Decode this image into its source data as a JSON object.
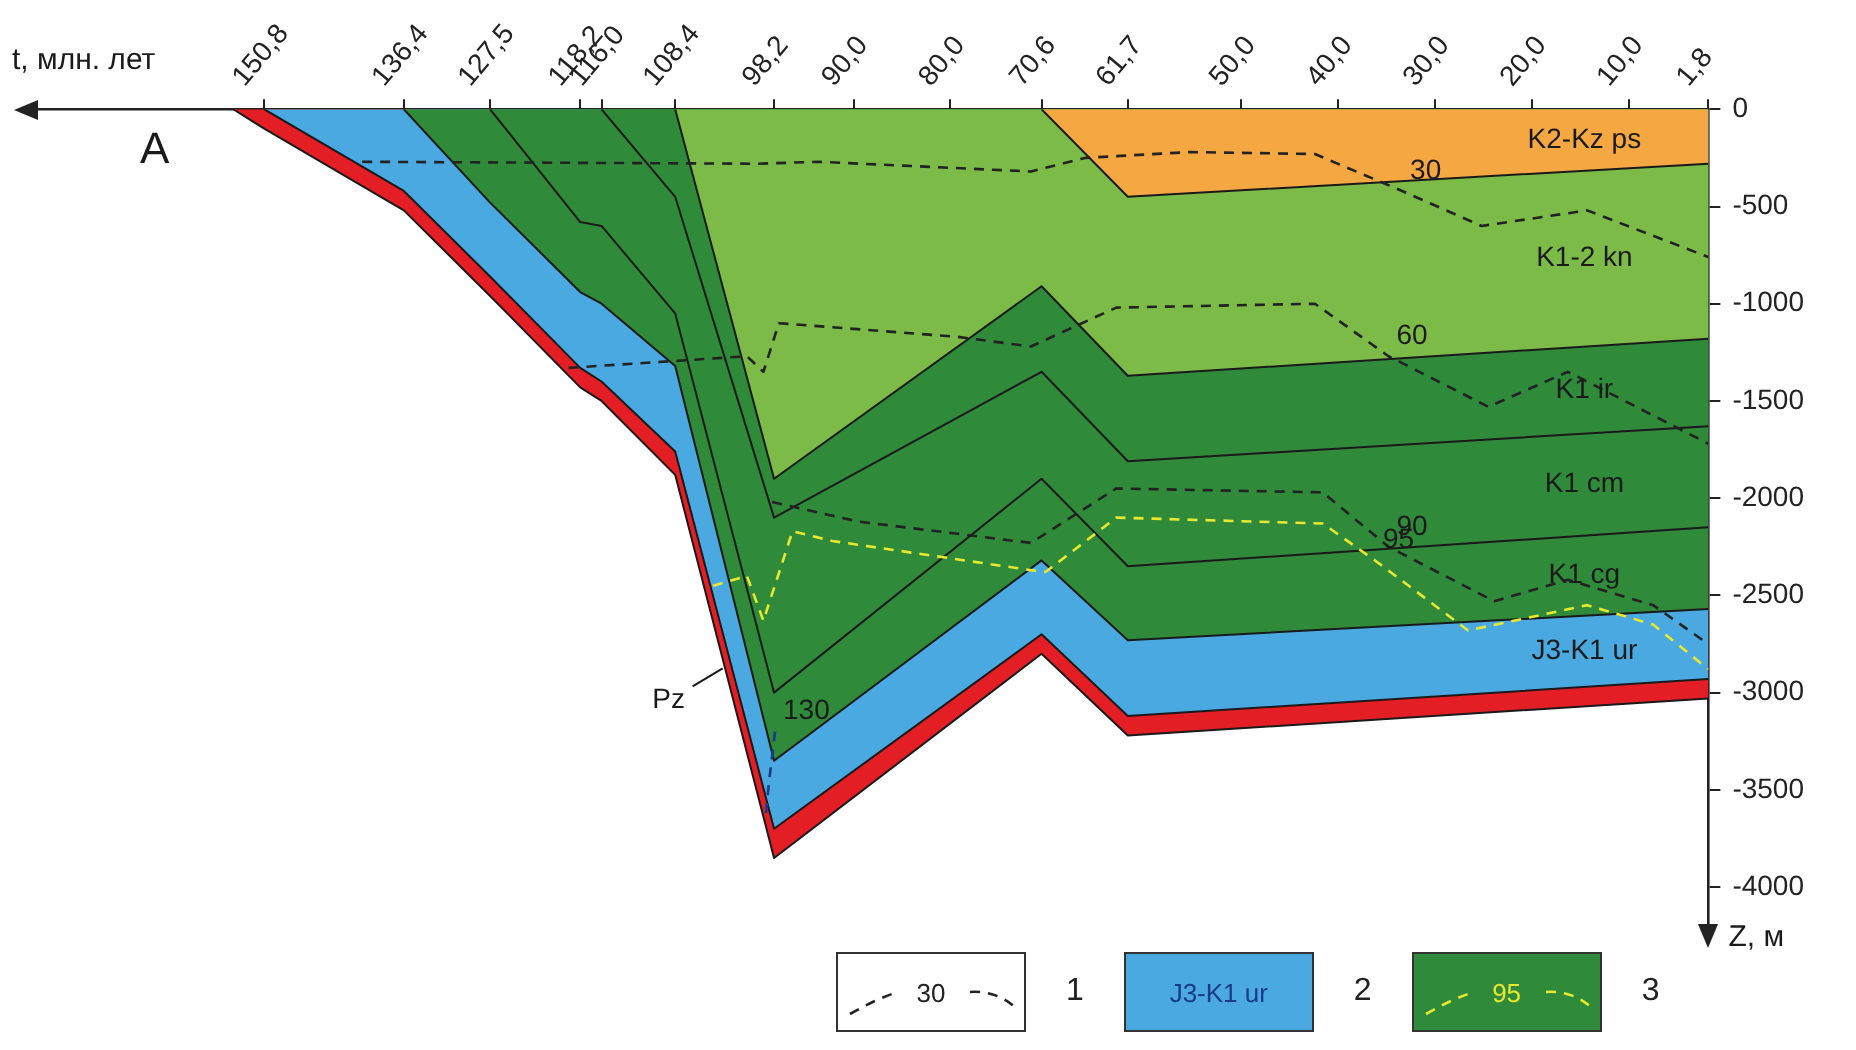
{
  "chart_data": {
    "type": "area",
    "stacked": true,
    "xlabel": "t, млн. лет",
    "ylabel": "Z, м",
    "xlim": [
      176,
      1.8
    ],
    "ylim": [
      -4200,
      0
    ],
    "xticks": [
      {
        "value": 150.8,
        "label": "150,8"
      },
      {
        "value": 136.4,
        "label": "136,4"
      },
      {
        "value": 127.5,
        "label": "127,5"
      },
      {
        "value": 118.2,
        "label": "118,2"
      },
      {
        "value": 116.0,
        "label": "116,0"
      },
      {
        "value": 108.4,
        "label": "108,4"
      },
      {
        "value": 98.2,
        "label": "98,2"
      },
      {
        "value": 90.0,
        "label": "90,0"
      },
      {
        "value": 80.0,
        "label": "80,0"
      },
      {
        "value": 70.6,
        "label": "70,6"
      },
      {
        "value": 61.7,
        "label": "61,7"
      },
      {
        "value": 50.0,
        "label": "50,0"
      },
      {
        "value": 40.0,
        "label": "40,0"
      },
      {
        "value": 30.0,
        "label": "30,0"
      },
      {
        "value": 20.0,
        "label": "20,0"
      },
      {
        "value": 10.0,
        "label": "10,0"
      },
      {
        "value": 1.8,
        "label": "1,8"
      }
    ],
    "yticks": [
      0,
      -500,
      -1000,
      -1500,
      -2000,
      -2500,
      -3000,
      -3500,
      -4000
    ],
    "marker": "none",
    "x": [
      154,
      150.8,
      136.4,
      127.5,
      118.2,
      116,
      108.4,
      98.2,
      70.6,
      61.7,
      1.8
    ],
    "series": [
      {
        "name": "K2-Kz ps",
        "color": "#f5a742",
        "values": [
          null,
          null,
          null,
          null,
          null,
          null,
          null,
          null,
          0,
          -450,
          -280
        ]
      },
      {
        "name": "K1-2 kn",
        "color": "#7dbb48",
        "values": [
          null,
          null,
          null,
          null,
          null,
          null,
          0,
          -1900,
          -910,
          -920,
          -900
        ]
      },
      {
        "name": "K1 ir",
        "color": "#2f8a3a",
        "values": [
          null,
          null,
          null,
          null,
          null,
          0,
          -450,
          -200,
          -440,
          -440,
          -450
        ]
      },
      {
        "name": "K1 cm",
        "color": "#2f8a3a",
        "values": [
          null,
          null,
          null,
          0,
          -580,
          -600,
          -600,
          -900,
          -550,
          -540,
          -520
        ]
      },
      {
        "name": "K1 cg",
        "color": "#2f8a3a",
        "values": [
          null,
          null,
          0,
          -480,
          -360,
          -400,
          -270,
          -350,
          -420,
          -380,
          -420
        ]
      },
      {
        "name": "J3-K1 ur",
        "color": "#4aa9e0",
        "values": [
          null,
          0,
          -420,
          -380,
          -390,
          -400,
          -440,
          -350,
          -380,
          -390,
          -360
        ]
      },
      {
        "name": "Pz",
        "color": "#e31e24",
        "values": [
          0,
          -100,
          -100,
          -100,
          -100,
          -100,
          -120,
          -150,
          -100,
          -100,
          -100
        ]
      },
      {
        "type": "line",
        "line_style": "dashed",
        "color": "#222222",
        "x": [
          140.7,
          99.8,
          93.6,
          71.7,
          66.1,
          55.3,
          42.4,
          33.4,
          25.2,
          14.3,
          1.8
        ],
        "values": [
          -270,
          -280,
          -270,
          -320,
          -250,
          -220,
          -230,
          -420,
          -600,
          -520,
          -760
        ]
      },
      {
        "type": "line",
        "line_style": "dashed",
        "color": "#222222",
        "x": [
          119.4,
          101,
          99.3,
          97.7,
          79.3,
          71.7,
          62.9,
          42.4,
          34.8,
          24.5,
          16.3,
          1.8
        ],
        "values": [
          -1330,
          -1270,
          -1350,
          -1100,
          -1170,
          -1220,
          -1020,
          -1000,
          -1270,
          -1530,
          -1350,
          -1720
        ]
      },
      {
        "type": "line",
        "line_style": "dashed",
        "color": "#222222",
        "x": [
          98.4,
          89.5,
          71.7,
          62.9,
          41.6,
          34.8,
          23.9,
          16.3,
          7.5,
          1.8
        ],
        "values": [
          -2020,
          -2120,
          -2230,
          -1950,
          -1970,
          -2250,
          -2530,
          -2420,
          -2550,
          -2750
        ]
      },
      {
        "type": "line",
        "line_style": "dashed",
        "color": "#e8e830",
        "x": [
          104.5,
          101,
          99.3,
          96.3,
          92.2,
          71.7,
          70.2,
          62.9,
          41.6,
          36.2,
          26.6,
          14.3,
          7.5,
          1.8
        ],
        "values": [
          -2450,
          -2400,
          -2630,
          -2170,
          -2220,
          -2370,
          -2380,
          -2100,
          -2130,
          -2320,
          -2680,
          -2550,
          -2650,
          -2880
        ]
      },
      {
        "type": "line",
        "line_style": "dashed",
        "color": "#1a3a8a",
        "x": [
          98.1,
          98.7,
          99.1
        ],
        "values": [
          -3200,
          -3450,
          -3650
        ]
      }
    ],
    "annotations": [
      {
        "text": "30",
        "x": 33.4,
        "y": -420
      },
      {
        "text": "60",
        "x": 34.8,
        "y": -1270
      },
      {
        "text": "90",
        "x": 34.8,
        "y": -2250
      },
      {
        "text": "95",
        "x": 36.2,
        "y": -2320
      },
      {
        "text": "130",
        "x": 98.1,
        "y": -3200
      },
      "A",
      "30",
      "1",
      "J3-K1 ur",
      "2",
      "95",
      "3"
    ]
  }
}
